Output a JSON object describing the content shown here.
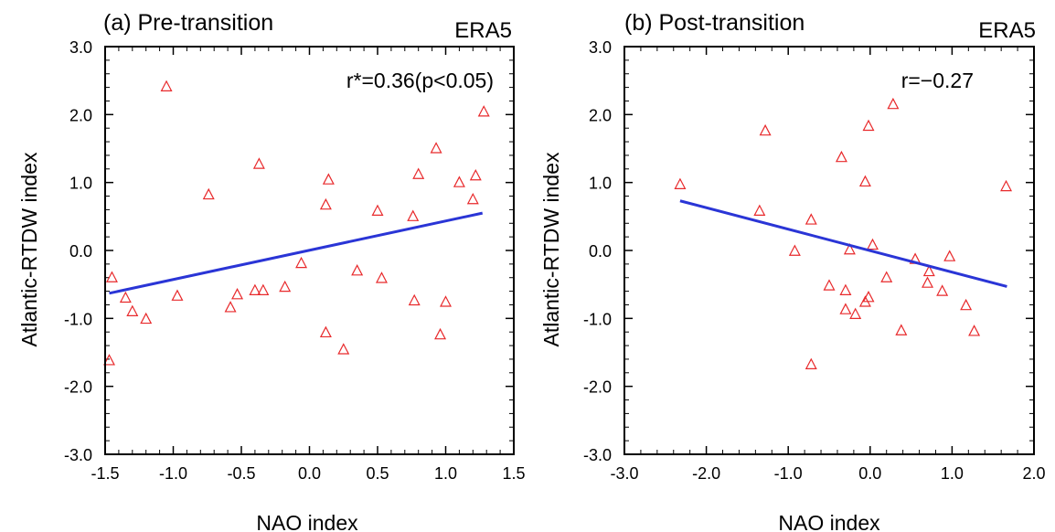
{
  "chart_data": [
    {
      "type": "scatter",
      "panel_title": "(a) Pre-transition",
      "dataset_label": "ERA5",
      "annotation": "r*=0.36(p<0.05)",
      "xlabel": "NAO index",
      "ylabel": "Atlantic-RTDW index",
      "xlim": [
        -1.5,
        1.5
      ],
      "ylim": [
        -3.0,
        3.0
      ],
      "xticks": [
        -1.5,
        -1.0,
        -0.5,
        0.0,
        0.5,
        1.0,
        1.5
      ],
      "xtick_labels": [
        "-1.5",
        "-1.0",
        "-0.5",
        "0.0",
        "0.5",
        "1.0",
        "1.5"
      ],
      "yticks": [
        -3,
        -2,
        -1,
        0,
        1,
        2,
        3
      ],
      "ytick_labels": [
        "-3.0",
        "-2.0",
        "-1.0",
        "0.0",
        "1.0",
        "2.0",
        "3.0"
      ],
      "marker_color": "#e8292b",
      "line_color": "#2a35d6",
      "points": [
        [
          -1.45,
          -0.4
        ],
        [
          -1.47,
          -1.62
        ],
        [
          -1.35,
          -0.7
        ],
        [
          -1.3,
          -0.9
        ],
        [
          -1.2,
          -1.01
        ],
        [
          -1.05,
          2.41
        ],
        [
          -0.97,
          -0.67
        ],
        [
          -0.74,
          0.82
        ],
        [
          -0.58,
          -0.84
        ],
        [
          -0.53,
          -0.65
        ],
        [
          -0.4,
          -0.59
        ],
        [
          -0.37,
          1.27
        ],
        [
          -0.34,
          -0.59
        ],
        [
          -0.18,
          -0.54
        ],
        [
          -0.06,
          -0.19
        ],
        [
          0.12,
          0.67
        ],
        [
          0.14,
          1.04
        ],
        [
          0.12,
          -1.21
        ],
        [
          0.25,
          -1.46
        ],
        [
          0.35,
          -0.3
        ],
        [
          0.5,
          0.58
        ],
        [
          0.53,
          -0.41
        ],
        [
          0.76,
          0.5
        ],
        [
          0.77,
          -0.74
        ],
        [
          0.8,
          1.12
        ],
        [
          0.93,
          1.5
        ],
        [
          0.96,
          -1.24
        ],
        [
          1.0,
          -0.76
        ],
        [
          1.1,
          1.0
        ],
        [
          1.2,
          0.75
        ],
        [
          1.22,
          1.1
        ],
        [
          1.28,
          2.04
        ]
      ],
      "fit_line": {
        "x": [
          -1.47,
          1.27
        ],
        "y": [
          -0.63,
          0.55
        ]
      }
    },
    {
      "type": "scatter",
      "panel_title": "(b) Post-transition",
      "dataset_label": "ERA5",
      "annotation": "r=−0.27",
      "xlabel": "NAO index",
      "ylabel": "Atlantic-RTDW index",
      "xlim": [
        -3.0,
        2.0
      ],
      "ylim": [
        -3.0,
        3.0
      ],
      "xticks": [
        -3,
        -2,
        -1,
        0,
        1,
        2
      ],
      "xtick_labels": [
        "-3.0",
        "-2.0",
        "-1.0",
        "0.0",
        "1.0",
        "2.0"
      ],
      "yticks": [
        -3,
        -2,
        -1,
        0,
        1,
        2,
        3
      ],
      "ytick_labels": [
        "-3.0",
        "-2.0",
        "-1.0",
        "0.0",
        "1.0",
        "2.0",
        "3.0"
      ],
      "marker_color": "#e8292b",
      "line_color": "#2a35d6",
      "points": [
        [
          -2.32,
          0.97
        ],
        [
          -1.35,
          0.58
        ],
        [
          -1.28,
          1.76
        ],
        [
          -0.92,
          -0.01
        ],
        [
          -0.72,
          0.45
        ],
        [
          -0.72,
          -1.68
        ],
        [
          -0.5,
          -0.52
        ],
        [
          -0.35,
          1.37
        ],
        [
          -0.3,
          -0.59
        ],
        [
          -0.3,
          -0.87
        ],
        [
          -0.25,
          0.01
        ],
        [
          -0.18,
          -0.94
        ],
        [
          -0.06,
          -0.76
        ],
        [
          -0.06,
          1.01
        ],
        [
          -0.02,
          1.83
        ],
        [
          -0.02,
          -0.69
        ],
        [
          0.03,
          0.08
        ],
        [
          0.2,
          -0.4
        ],
        [
          0.28,
          2.15
        ],
        [
          0.38,
          -1.18
        ],
        [
          0.55,
          -0.13
        ],
        [
          0.7,
          -0.48
        ],
        [
          0.72,
          -0.31
        ],
        [
          0.88,
          -0.6
        ],
        [
          0.97,
          -0.09
        ],
        [
          1.17,
          -0.81
        ],
        [
          1.27,
          -1.19
        ],
        [
          1.66,
          0.94
        ]
      ],
      "fit_line": {
        "x": [
          -2.32,
          1.67
        ],
        "y": [
          0.73,
          -0.53
        ]
      }
    }
  ]
}
